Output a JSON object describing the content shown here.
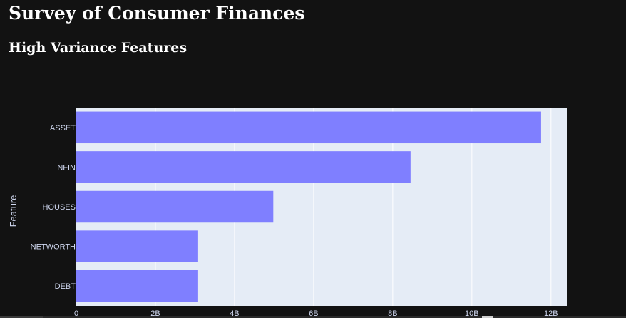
{
  "page": {
    "title": "Survey of Consumer Finances",
    "subtitle": "High Variance Features"
  },
  "colors": {
    "background": "#121212",
    "plot_background": "#e5ecf6",
    "bar": "#7f7fff",
    "grid": "#ffffff",
    "tick_text": "#d0d8f0",
    "axis_title": "#d0d8f0"
  },
  "chart_data": {
    "type": "bar",
    "orientation": "horizontal",
    "title": "",
    "xlabel": "",
    "ylabel": "Feature",
    "categories": [
      "ASSET",
      "NFIN",
      "HOUSES",
      "NETWORTH",
      "DEBT"
    ],
    "values": [
      11750000000.0,
      8450000000.0,
      4980000000.0,
      3080000000.0,
      3080000000.0
    ],
    "xlim": [
      0,
      12400000000.0
    ],
    "xticks": [
      0,
      2000000000.0,
      4000000000.0,
      6000000000.0,
      8000000000.0,
      10000000000.0,
      12000000000.0
    ],
    "xtick_labels": [
      "0",
      "2B",
      "4B",
      "6B",
      "8B",
      "10B",
      "12B"
    ],
    "grid": true,
    "legend": "none"
  }
}
